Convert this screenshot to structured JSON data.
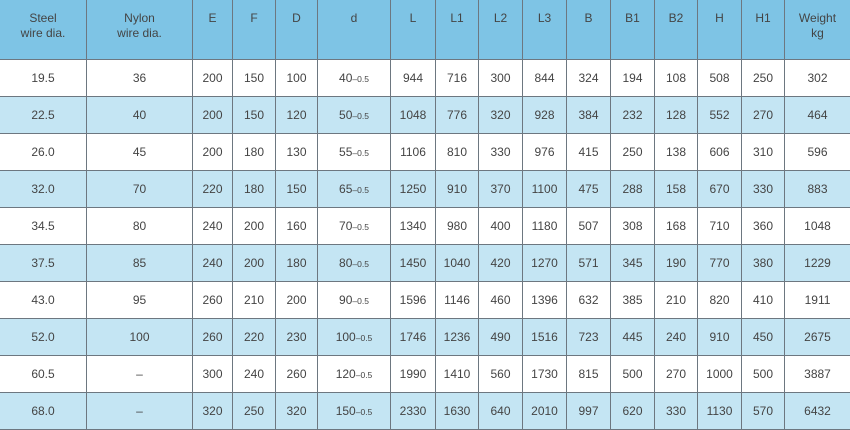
{
  "colors": {
    "header_bg": "#7ec4e5",
    "alt_row_bg": "#c4e5f3",
    "text": "#444444"
  },
  "table": {
    "headers": [
      [
        "Steel",
        "wire dia."
      ],
      [
        "Nylon",
        "wire dia."
      ],
      [
        "E"
      ],
      [
        "F"
      ],
      [
        "D"
      ],
      [
        "d"
      ],
      [
        "L"
      ],
      [
        "L1"
      ],
      [
        "L2"
      ],
      [
        "L3"
      ],
      [
        "B"
      ],
      [
        "B1"
      ],
      [
        "B2"
      ],
      [
        "H"
      ],
      [
        "H1"
      ],
      [
        "Weight",
        "kg"
      ]
    ],
    "rows": [
      [
        "19.5",
        "36",
        "200",
        "150",
        "100",
        "40",
        "944",
        "716",
        "300",
        "844",
        "324",
        "194",
        "108",
        "508",
        "250",
        "302"
      ],
      [
        "22.5",
        "40",
        "200",
        "150",
        "120",
        "50",
        "1048",
        "776",
        "320",
        "928",
        "384",
        "232",
        "128",
        "552",
        "270",
        "464"
      ],
      [
        "26.0",
        "45",
        "200",
        "180",
        "130",
        "55",
        "1106",
        "810",
        "330",
        "976",
        "415",
        "250",
        "138",
        "606",
        "310",
        "596"
      ],
      [
        "32.0",
        "70",
        "220",
        "180",
        "150",
        "65",
        "1250",
        "910",
        "370",
        "1100",
        "475",
        "288",
        "158",
        "670",
        "330",
        "883"
      ],
      [
        "34.5",
        "80",
        "240",
        "200",
        "160",
        "70",
        "1340",
        "980",
        "400",
        "1180",
        "507",
        "308",
        "168",
        "710",
        "360",
        "1048"
      ],
      [
        "37.5",
        "85",
        "240",
        "200",
        "180",
        "80",
        "1450",
        "1040",
        "420",
        "1270",
        "571",
        "345",
        "190",
        "770",
        "380",
        "1229"
      ],
      [
        "43.0",
        "95",
        "260",
        "210",
        "200",
        "90",
        "1596",
        "1146",
        "460",
        "1396",
        "632",
        "385",
        "210",
        "820",
        "410",
        "1911"
      ],
      [
        "52.0",
        "100",
        "260",
        "220",
        "230",
        "100",
        "1746",
        "1236",
        "490",
        "1516",
        "723",
        "445",
        "240",
        "910",
        "450",
        "2675"
      ],
      [
        "60.5",
        "–",
        "300",
        "240",
        "260",
        "120",
        "1990",
        "1410",
        "560",
        "1730",
        "815",
        "500",
        "270",
        "1000",
        "500",
        "3887"
      ],
      [
        "68.0",
        "–",
        "320",
        "250",
        "320",
        "150",
        "2330",
        "1630",
        "640",
        "2010",
        "997",
        "620",
        "330",
        "1130",
        "570",
        "6432"
      ]
    ],
    "d_tolerance": "–0.5"
  }
}
